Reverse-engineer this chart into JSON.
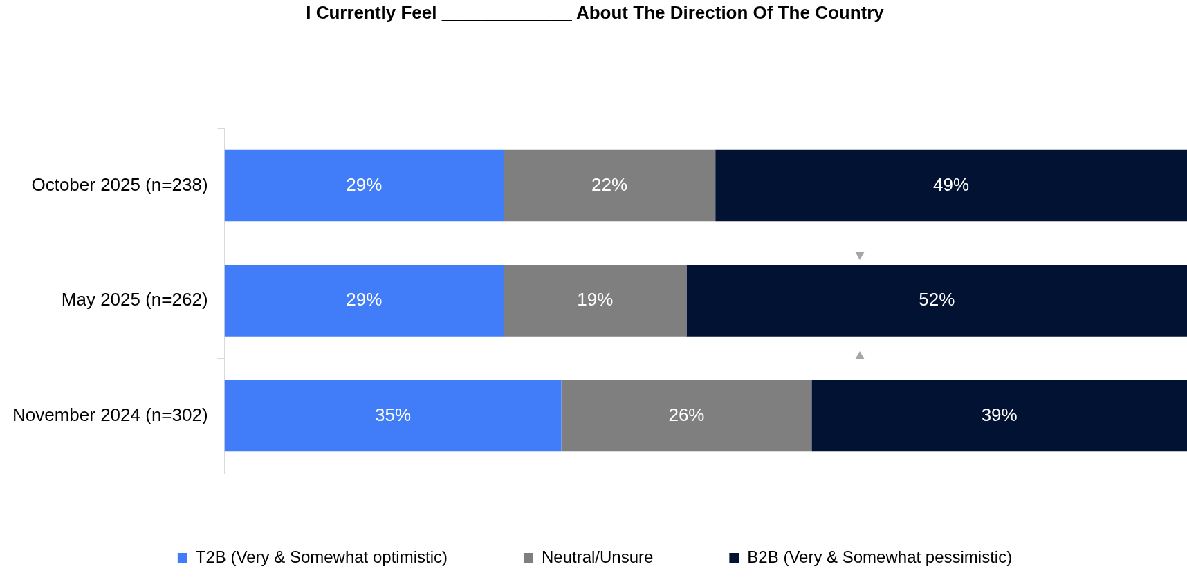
{
  "chart_data": {
    "type": "bar",
    "orientation": "horizontal",
    "stacked": true,
    "title": "I Currently Feel _____________ About The Direction Of The Country",
    "categories": [
      "October 2025 (n=238)",
      "May 2025 (n=262)",
      "November 2024 (n=302)"
    ],
    "series": [
      {
        "name": "T2B (Very & Somewhat optimistic)",
        "color": "#427df9",
        "values": [
          29,
          29,
          35
        ],
        "value_labels": [
          "29%",
          "29%",
          "35%"
        ]
      },
      {
        "name": "Neutral/Unsure",
        "color": "#7f7f7f",
        "values": [
          22,
          19,
          26
        ],
        "value_labels": [
          "22%",
          "19%",
          "26%"
        ]
      },
      {
        "name": "B2B (Very & Somewhat pessimistic)",
        "color": "#021232",
        "values": [
          49,
          52,
          39
        ],
        "value_labels": [
          "49%",
          "52%",
          "39%"
        ]
      }
    ],
    "legend": "bottom"
  }
}
